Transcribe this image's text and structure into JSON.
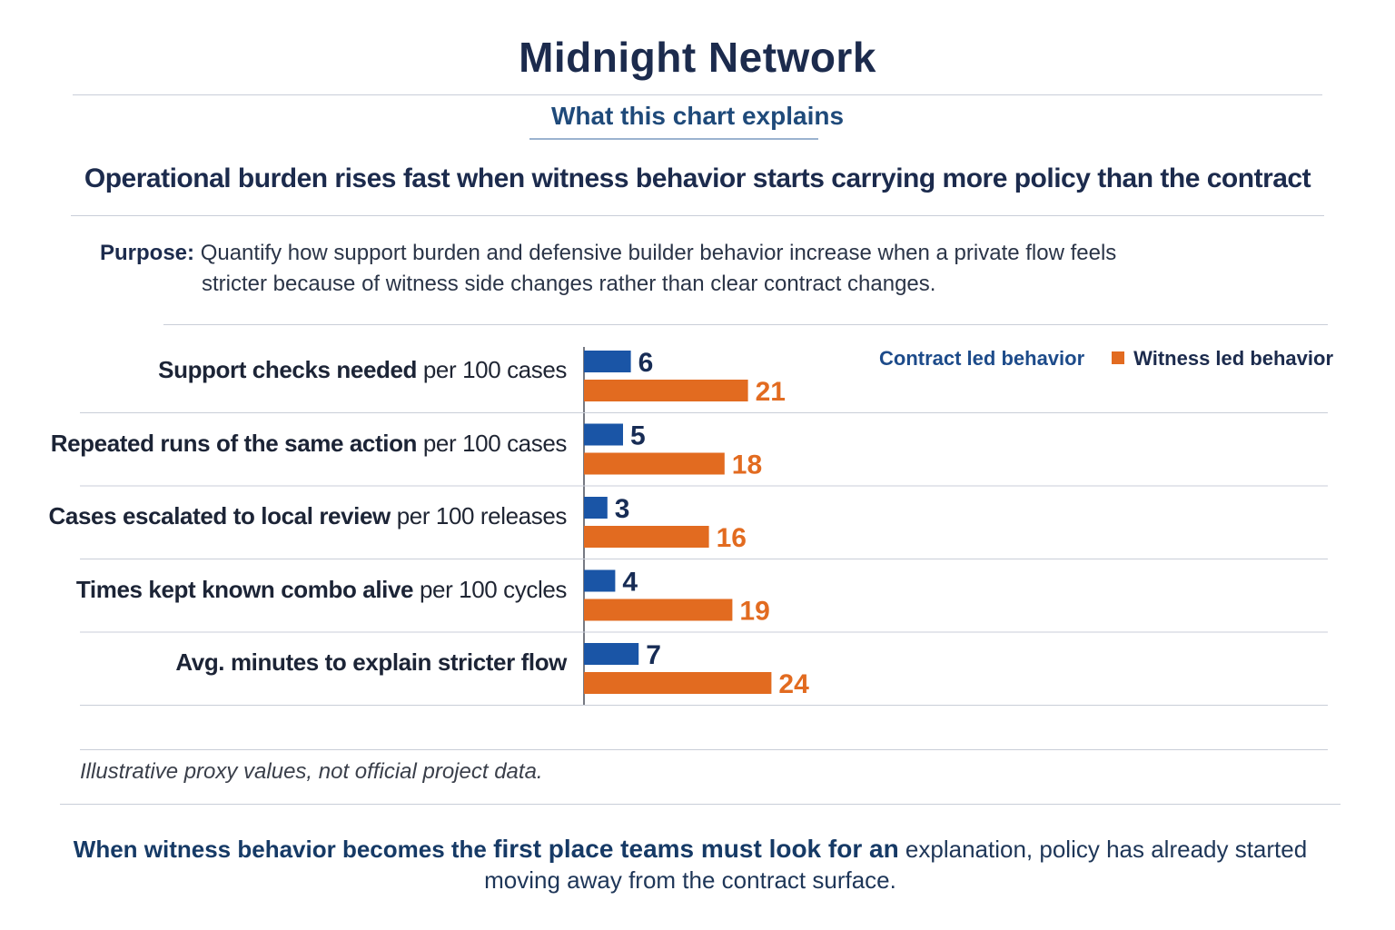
{
  "title": "Midnight Network",
  "subtitle": "What this chart explains",
  "headline": "Operational burden rises fast when witness behavior starts carrying more policy than the contract",
  "purpose": {
    "label": "Purpose:",
    "line1": "Quantify how support burden and defensive builder behavior increase when a private flow feels",
    "line2": "stricter because of witness side changes rather than clear contract changes."
  },
  "note": "Illustrative proxy values, not official project data.",
  "bottom": {
    "part1": "When witness behavior becomes the ",
    "part2": "first place teams must look for an",
    "part3": " explanation, policy has already started",
    "line2": "moving away from the contract surface."
  },
  "colors": {
    "contract": "#1a55a6",
    "witness": "#e26b20",
    "contract_label": "#172c55",
    "witness_label": "#e26b20"
  },
  "chart_data": {
    "type": "bar",
    "orientation": "horizontal",
    "legend_position": "top-right",
    "categories": [
      {
        "bold": "Support checks needed",
        "rest": " per 100 cases"
      },
      {
        "bold": "Repeated runs of the same action",
        "rest": " per 100 cases"
      },
      {
        "bold": "Cases escalated to local review",
        "rest": " per 100 releases"
      },
      {
        "bold": "Times kept known combo alive",
        "rest": " per 100 cycles"
      },
      {
        "bold": "Avg. minutes to explain stricter flow",
        "rest": ""
      }
    ],
    "series": [
      {
        "name": "Contract led behavior",
        "values": [
          6,
          5,
          3,
          4,
          7
        ],
        "bar_lengths": [
          6,
          5,
          3,
          4,
          7
        ]
      },
      {
        "name": "Witness led behavior",
        "values": [
          21,
          18,
          16,
          19,
          24
        ],
        "bar_lengths": [
          21,
          18,
          16,
          19,
          24
        ]
      }
    ]
  }
}
